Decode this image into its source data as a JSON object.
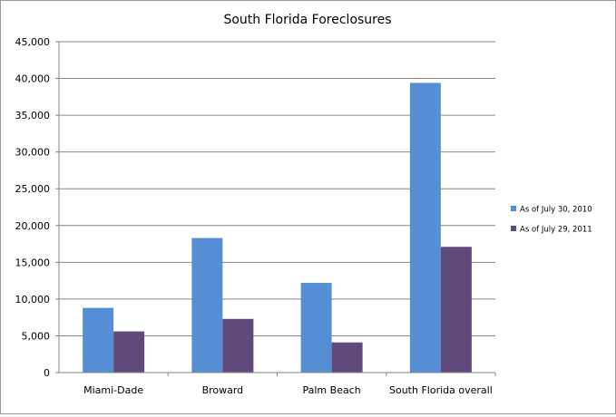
{
  "chart_data": {
    "type": "bar",
    "title": "South  Florida Foreclosures",
    "xlabel": "",
    "ylabel": "",
    "categories": [
      "Miami-Dade",
      "Broward",
      "Palm Beach",
      "South Florida overall"
    ],
    "series": [
      {
        "name": "As of July 30, 2010",
        "color": "#558ed5",
        "values": [
          8800,
          18300,
          12200,
          39400
        ]
      },
      {
        "name": "As of July 29, 2011",
        "color": "#604a7b",
        "values": [
          5600,
          7300,
          4100,
          17100
        ]
      }
    ],
    "ylim": [
      0,
      45000
    ],
    "yticks": [
      0,
      5000,
      10000,
      15000,
      20000,
      25000,
      30000,
      35000,
      40000,
      45000
    ],
    "ytick_labels": [
      "0",
      "5,000",
      "10,000",
      "15,000",
      "20,000",
      "25,000",
      "30,000",
      "35,000",
      "40,000",
      "45,000"
    ],
    "grid": true,
    "legend_position": "right"
  }
}
